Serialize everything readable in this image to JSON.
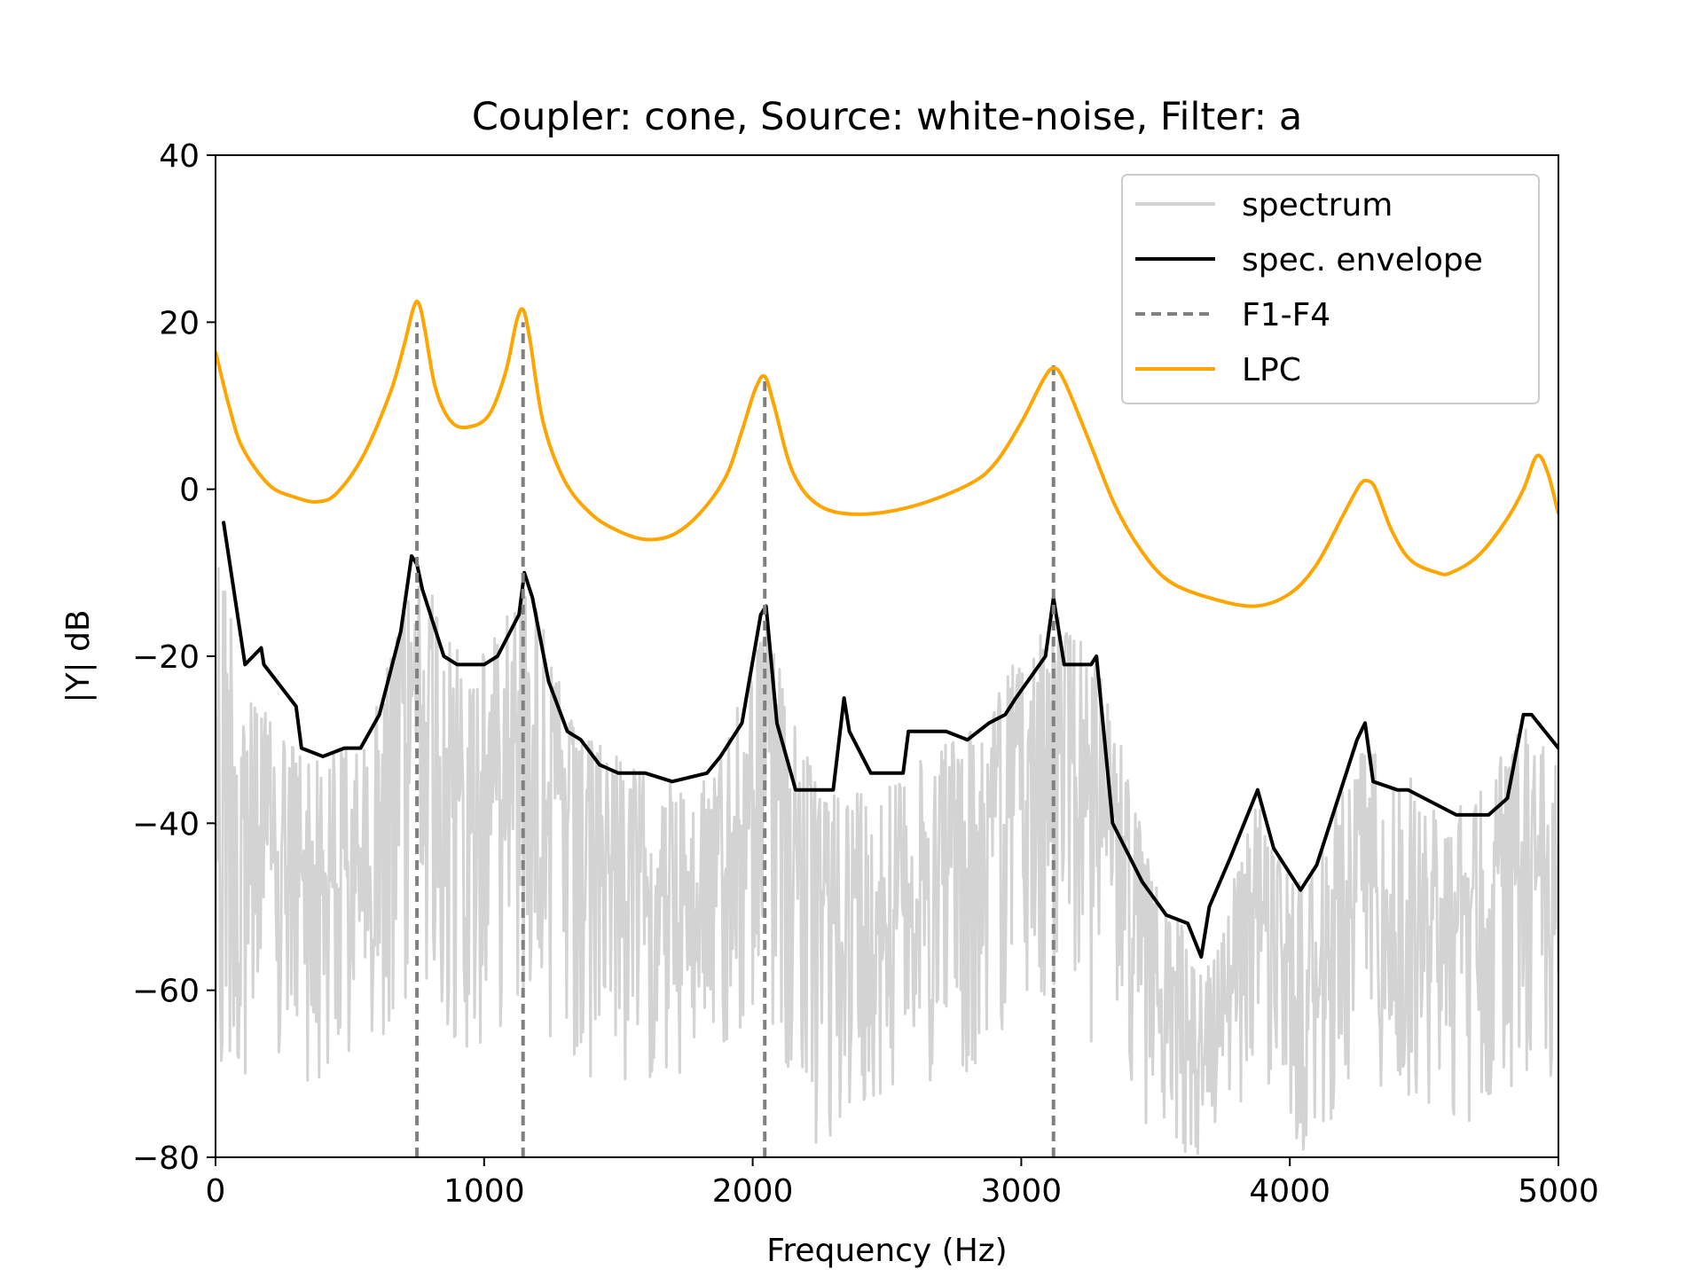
{
  "chart_data": {
    "type": "line",
    "title": "Coupler: cone, Source: white-noise, Filter: a",
    "xlabel": "Frequency (Hz)",
    "ylabel": "|Y| dB",
    "xlim": [
      0,
      5000
    ],
    "ylim": [
      -80,
      40
    ],
    "xticks": [
      0,
      1000,
      2000,
      3000,
      4000,
      5000
    ],
    "xtick_labels": [
      "0",
      "1000",
      "2000",
      "3000",
      "4000",
      "5000"
    ],
    "yticks": [
      -80,
      -60,
      -40,
      -20,
      0,
      20,
      40
    ],
    "ytick_labels": [
      "−80",
      "−60",
      "−40",
      "−20",
      "0",
      "20",
      "40"
    ],
    "grid": false,
    "legend_position": "top-right",
    "colors": {
      "spectrum": "#d3d3d3",
      "envelope": "#000000",
      "formants": "#808080",
      "lpc": "#ffa500"
    },
    "series": [
      {
        "name": "spectrum",
        "style": "solid",
        "description_points": {
          "x": [
            0,
            100,
            300,
            550,
            750,
            950,
            1150,
            1350,
            1650,
            1850,
            2050,
            2250,
            2500,
            2800,
            3120,
            3300,
            3500,
            3700,
            3880,
            4050,
            4280,
            4600,
            4880,
            5000
          ],
          "y_top": [
            -4,
            -22,
            -31,
            -31,
            -9,
            -22,
            -10,
            -29,
            -35,
            -35,
            -15,
            -37,
            -35,
            -29,
            -14,
            -21,
            -47,
            -57,
            -37,
            -48,
            -29,
            -39,
            -27,
            -31
          ],
          "y_bottom": [
            -80,
            -70,
            -72,
            -70,
            -62,
            -68,
            -62,
            -70,
            -72,
            -70,
            -62,
            -80,
            -72,
            -70,
            -60,
            -70,
            -80,
            -80,
            -70,
            -80,
            -70,
            -78,
            -70,
            -72
          ]
        }
      },
      {
        "name": "spec. envelope",
        "style": "solid",
        "x": [
          30,
          110,
          170,
          180,
          300,
          320,
          400,
          480,
          540,
          610,
          690,
          730,
          750,
          770,
          850,
          900,
          1000,
          1050,
          1130,
          1150,
          1180,
          1240,
          1310,
          1360,
          1430,
          1500,
          1600,
          1700,
          1830,
          1880,
          1960,
          2030,
          2050,
          2090,
          2160,
          2300,
          2340,
          2360,
          2440,
          2560,
          2580,
          2680,
          2720,
          2800,
          2880,
          2940,
          2980,
          3090,
          3120,
          3160,
          3260,
          3280,
          3340,
          3450,
          3540,
          3620,
          3670,
          3700,
          3780,
          3880,
          3940,
          4040,
          4100,
          4180,
          4250,
          4280,
          4310,
          4400,
          4440,
          4500,
          4620,
          4700,
          4740,
          4810,
          4870,
          4900,
          5000
        ],
        "y": [
          -4,
          -21,
          -19,
          -21,
          -26,
          -31,
          -32,
          -31,
          -31,
          -27,
          -17,
          -8,
          -9,
          -12,
          -20,
          -21,
          -21,
          -20,
          -15,
          -10,
          -13,
          -23,
          -29,
          -30,
          -33,
          -34,
          -34,
          -35,
          -34,
          -32,
          -28,
          -15,
          -14,
          -28,
          -36,
          -36,
          -25,
          -29,
          -34,
          -34,
          -29,
          -29,
          -29,
          -30,
          -28,
          -27,
          -25,
          -20,
          -13,
          -21,
          -21,
          -20,
          -40,
          -47,
          -51,
          -52,
          -56,
          -50,
          -44,
          -36,
          -43,
          -48,
          -45,
          -37,
          -30,
          -28,
          -35,
          -36,
          -36,
          -37,
          -39,
          -39,
          -39,
          -37,
          -27,
          -27,
          -31
        ]
      },
      {
        "name": "F1-F4",
        "style": "dashed",
        "x": [
          750,
          1145,
          2045,
          3120
        ],
        "y_top": [
          20,
          20,
          13,
          15
        ]
      },
      {
        "name": "LPC",
        "style": "solid",
        "x": [
          0,
          50,
          100,
          200,
          300,
          380,
          450,
          550,
          650,
          700,
          740,
          760,
          780,
          820,
          880,
          950,
          1020,
          1080,
          1120,
          1145,
          1170,
          1220,
          1300,
          1400,
          1500,
          1600,
          1700,
          1800,
          1900,
          1960,
          2010,
          2045,
          2080,
          2150,
          2250,
          2400,
          2600,
          2800,
          2900,
          3000,
          3080,
          3120,
          3160,
          3250,
          3350,
          3450,
          3550,
          3700,
          3870,
          4000,
          4100,
          4200,
          4260,
          4290,
          4320,
          4380,
          4450,
          4550,
          4600,
          4700,
          4800,
          4870,
          4920,
          4960,
          5000
        ],
        "y": [
          16.5,
          10,
          5,
          0.5,
          -1,
          -1.5,
          -0.5,
          4,
          11.5,
          17,
          22,
          22,
          19,
          12,
          8,
          7.5,
          9,
          14,
          20,
          21.5,
          18,
          8,
          1,
          -3,
          -5,
          -6,
          -5.5,
          -3,
          1.5,
          7,
          12,
          13.5,
          10,
          2,
          -2,
          -3,
          -2,
          0.5,
          3,
          8,
          13,
          14.5,
          13,
          6,
          -2,
          -7.5,
          -11,
          -13,
          -14,
          -12.5,
          -9,
          -3,
          0.5,
          1,
          0,
          -5,
          -8.5,
          -10,
          -10,
          -8,
          -4,
          0,
          4,
          2,
          -3
        ]
      }
    ],
    "legend": [
      {
        "name": "spectrum",
        "key": "spectrum"
      },
      {
        "name": "spec. envelope",
        "key": "envelope"
      },
      {
        "name": "F1-F4",
        "key": "formants"
      },
      {
        "name": "LPC",
        "key": "lpc"
      }
    ]
  }
}
